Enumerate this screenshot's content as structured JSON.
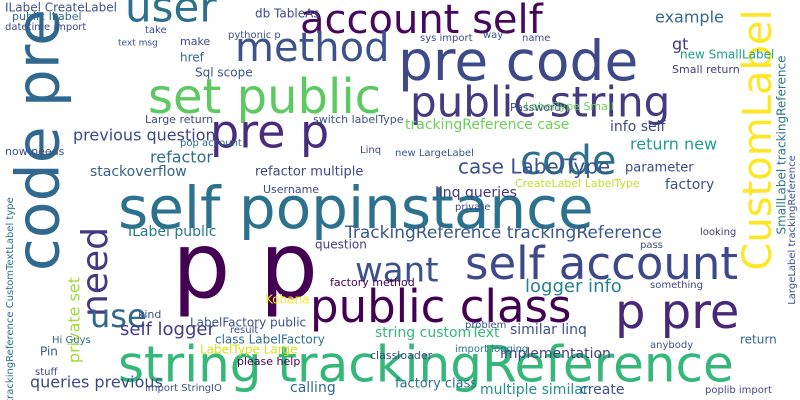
{
  "words": [
    "self popinstance",
    "p p",
    "string trackingReference",
    "account self",
    "pre code",
    "method",
    "user",
    "set public",
    "public string",
    "pre p",
    "code pre",
    "code",
    "CustomLabel",
    "self account",
    "want",
    "need",
    "public class",
    "p pre",
    "use",
    "case LabelType",
    "TrackingReference trackingReference",
    "logger info",
    "self logger",
    "queries previous",
    "previous question",
    "private set",
    "refactor",
    "stackoverflow",
    "ILabel public",
    "trackingReference case",
    "return new",
    "info self",
    "example",
    "gt",
    "Sql scope",
    "linq queries",
    "factory",
    "parameter",
    "refactor multiple",
    "similar linq",
    "string customText",
    "implementation",
    "multiple similar",
    "create",
    "factory class",
    "calling",
    "LabelFactory public",
    "class LabelFactory",
    "LabelType Large",
    "Hi Guys",
    "import StringIO",
    "factory method",
    "question",
    "Large return",
    "LabelType Small",
    "new SmallLabel",
    "Small return",
    "Password",
    "SmallLabel trackingReference",
    "LargeLabel trackingReference",
    "db TableAs",
    "ILabel CreateLabel",
    "public ILabel",
    "datetime import",
    "now needs",
    "trackingReference CustomTextLabel type",
    "Username",
    "pop account",
    "switch labelType",
    "Linq",
    "new LargeLabel",
    "CreateLabel LabelType",
    "private",
    "looking",
    "pass",
    "something",
    "anybody",
    "return",
    "poplib import",
    "Kohana",
    "kind",
    "result",
    "problem",
    "classloader",
    "please help",
    "text msg",
    "make",
    "href",
    "take",
    "pythonic p",
    "name",
    "way",
    "sys import",
    "import logging",
    "Pin",
    "stuff"
  ]
}
